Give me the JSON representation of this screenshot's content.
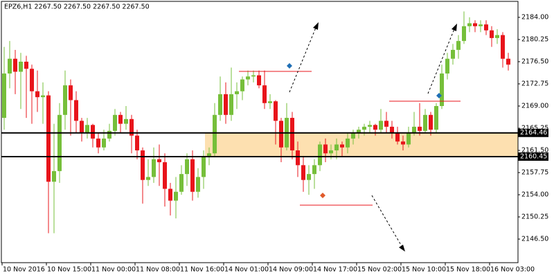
{
  "chart_data": {
    "type": "candlestick",
    "title": "EPZ6,H1  2267.50 2267.50 2267.50 2267.50",
    "categories": [
      "10 Nov 2016",
      null,
      null,
      null,
      null,
      null,
      null,
      null,
      "10 Nov 15:00",
      null,
      null,
      null,
      null,
      null,
      null,
      null,
      "11 Nov 00:00",
      null,
      null,
      null,
      null,
      null,
      null,
      null,
      "11 Nov 08:00",
      null,
      null,
      null,
      null,
      null,
      null,
      null,
      "11 Nov 16:00",
      null,
      null,
      null,
      null,
      null,
      null,
      null,
      "14 Nov 01:00",
      null,
      null,
      null,
      null,
      null,
      null,
      null,
      "14 Nov 09:00",
      null,
      null,
      null,
      null,
      null,
      null,
      null,
      "14 Nov 17:00",
      null,
      null,
      null,
      null,
      null,
      null,
      null,
      "15 Nov 02:00",
      null,
      null,
      null,
      null,
      null,
      null,
      null,
      "15 Nov 10:00",
      null,
      null,
      null,
      null,
      null,
      null,
      null,
      "15 Nov 18:00",
      null,
      null,
      null,
      null,
      null,
      null,
      null,
      "16 Nov 03:00",
      null,
      null,
      null
    ],
    "open": [
      2167.0,
      2174.5,
      2177.0,
      2174.8,
      2176.5,
      2175.3,
      2171.5,
      2170.5,
      2170.8,
      2156.2,
      2158.0,
      2167.5,
      2172.5,
      2170.0,
      2166.5,
      2164.5,
      2165.8,
      2163.5,
      2162.0,
      2163.5,
      2164.8,
      2167.5,
      2166.0,
      2166.8,
      2164.0,
      2161.5,
      2156.5,
      2157.0,
      2160.0,
      2159.5,
      2155.0,
      2153.0,
      2154.5,
      2157.5,
      2160.0,
      2154.5,
      2157.0,
      2160.5,
      2161.0,
      2167.5,
      2171.0,
      2167.5,
      2171.0,
      2171.5,
      2173.5,
      2174.0,
      2174.2,
      2172.5,
      2169.5,
      2169.8,
      2166.5,
      2162.0,
      2167.0,
      2161.5,
      2159.0,
      2156.5,
      2157.5,
      2159.0,
      2162.5,
      2161.0,
      2161.5,
      2162.5,
      2162.0,
      2163.5,
      2164.5,
      2165.0,
      2165.5,
      2165.8,
      2165.0,
      2166.5,
      2165.5,
      2164.5,
      2163.0,
      2162.5,
      2164.5,
      2165.5,
      2164.8,
      2167.5,
      2165.0,
      2169.0,
      2174.5,
      2177.0,
      2178.5,
      2180.0,
      2182.5,
      2183.0,
      2182.5,
      2182.8,
      2181.8,
      2180.5,
      2181.0,
      2177.0
    ],
    "high": [
      2179.0,
      2180.0,
      2178.5,
      2178.0,
      2177.5,
      2176.0,
      2175.0,
      2173.0,
      2171.5,
      2166.0,
      2169.5,
      2175.0,
      2173.5,
      2171.5,
      2167.0,
      2167.0,
      2166.0,
      2164.5,
      2165.0,
      2166.0,
      2168.5,
      2168.0,
      2169.0,
      2167.5,
      2165.0,
      2162.0,
      2160.0,
      2162.0,
      2162.5,
      2161.0,
      2156.0,
      2157.0,
      2159.0,
      2161.0,
      2161.5,
      2158.5,
      2161.5,
      2162.0,
      2169.5,
      2174.0,
      2173.0,
      2175.5,
      2173.0,
      2174.0,
      2175.0,
      2175.0,
      2175.0,
      2175.0,
      2171.0,
      2170.0,
      2167.0,
      2169.5,
      2168.0,
      2163.0,
      2160.5,
      2159.0,
      2160.0,
      2163.0,
      2163.5,
      2162.5,
      2163.5,
      2163.0,
      2164.5,
      2165.0,
      2165.5,
      2166.0,
      2166.5,
      2166.0,
      2168.5,
      2168.0,
      2166.5,
      2165.5,
      2164.0,
      2165.5,
      2168.0,
      2169.5,
      2168.5,
      2168.0,
      2169.5,
      2176.0,
      2178.0,
      2179.5,
      2181.0,
      2185.0,
      2184.0,
      2183.5,
      2183.5,
      2183.5,
      2182.5,
      2182.0,
      2181.5,
      2178.0
    ],
    "low": [
      2165.0,
      2172.0,
      2171.0,
      2168.5,
      2167.0,
      2166.0,
      2168.0,
      2166.0,
      2147.5,
      2147.5,
      2156.0,
      2165.0,
      2164.0,
      2164.5,
      2163.0,
      2163.5,
      2162.0,
      2161.0,
      2161.5,
      2163.0,
      2164.0,
      2164.5,
      2165.0,
      2161.0,
      2160.0,
      2152.5,
      2155.5,
      2156.0,
      2155.5,
      2152.0,
      2150.5,
      2150.0,
      2154.0,
      2155.5,
      2153.0,
      2153.5,
      2155.0,
      2159.0,
      2160.5,
      2166.5,
      2166.0,
      2166.5,
      2168.5,
      2170.0,
      2172.5,
      2173.0,
      2172.0,
      2168.5,
      2168.5,
      2162.5,
      2159.5,
      2161.5,
      2160.0,
      2157.0,
      2154.5,
      2154.0,
      2155.0,
      2158.0,
      2159.5,
      2160.0,
      2160.0,
      2160.5,
      2161.0,
      2162.5,
      2163.5,
      2164.0,
      2164.5,
      2164.0,
      2164.5,
      2164.5,
      2163.5,
      2162.5,
      2161.5,
      2162.0,
      2164.0,
      2164.0,
      2164.5,
      2164.0,
      2164.5,
      2168.5,
      2173.5,
      2176.0,
      2177.0,
      2179.5,
      2181.5,
      2181.5,
      2181.5,
      2181.0,
      2179.0,
      2179.5,
      2175.5,
      2175.0
    ],
    "close": [
      2174.5,
      2177.0,
      2174.8,
      2176.5,
      2175.3,
      2171.5,
      2170.5,
      2170.8,
      2156.2,
      2158.0,
      2167.5,
      2172.5,
      2170.0,
      2166.5,
      2164.5,
      2165.8,
      2163.5,
      2162.0,
      2163.5,
      2164.8,
      2167.5,
      2166.0,
      2166.8,
      2164.0,
      2161.5,
      2156.5,
      2157.0,
      2160.0,
      2159.5,
      2155.0,
      2153.0,
      2154.5,
      2157.5,
      2160.0,
      2154.5,
      2157.0,
      2160.5,
      2161.0,
      2167.5,
      2171.0,
      2167.5,
      2171.0,
      2171.5,
      2173.5,
      2174.0,
      2174.2,
      2172.5,
      2169.5,
      2169.8,
      2166.5,
      2162.0,
      2167.0,
      2161.5,
      2159.0,
      2156.5,
      2157.5,
      2159.0,
      2162.5,
      2161.0,
      2161.5,
      2162.5,
      2162.0,
      2163.5,
      2164.5,
      2165.0,
      2165.5,
      2165.8,
      2165.0,
      2166.5,
      2165.5,
      2164.5,
      2163.0,
      2162.5,
      2164.5,
      2165.5,
      2164.8,
      2167.5,
      2165.0,
      2169.0,
      2174.5,
      2177.0,
      2178.5,
      2180.0,
      2182.5,
      2183.0,
      2182.5,
      2182.8,
      2181.8,
      2180.5,
      2181.0,
      2177.0,
      2176.0
    ],
    "up_color": "#76bf3a",
    "down_color": "#e8141b",
    "ylim": [
      2142.63,
      2186.58
    ],
    "yticks": [
      {
        "value": 2146.5,
        "label": "2146.50"
      },
      {
        "value": 2150.25,
        "label": "2150.25"
      },
      {
        "value": 2154,
        "label": "2154.00"
      },
      {
        "value": 2157.75,
        "label": "2157.75"
      },
      {
        "value": 2161.5,
        "label": "2161.50"
      },
      {
        "value": 2165.25,
        "label": "2165.25"
      },
      {
        "value": 2169,
        "label": "2169.00"
      },
      {
        "value": 2172.75,
        "label": "2172.75"
      },
      {
        "value": 2176.5,
        "label": "2176.50"
      },
      {
        "value": 2180.25,
        "label": "2180.25"
      },
      {
        "value": 2184,
        "label": "2184.00"
      }
    ],
    "hlines": [
      2164.46,
      2160.45
    ]
  }
}
